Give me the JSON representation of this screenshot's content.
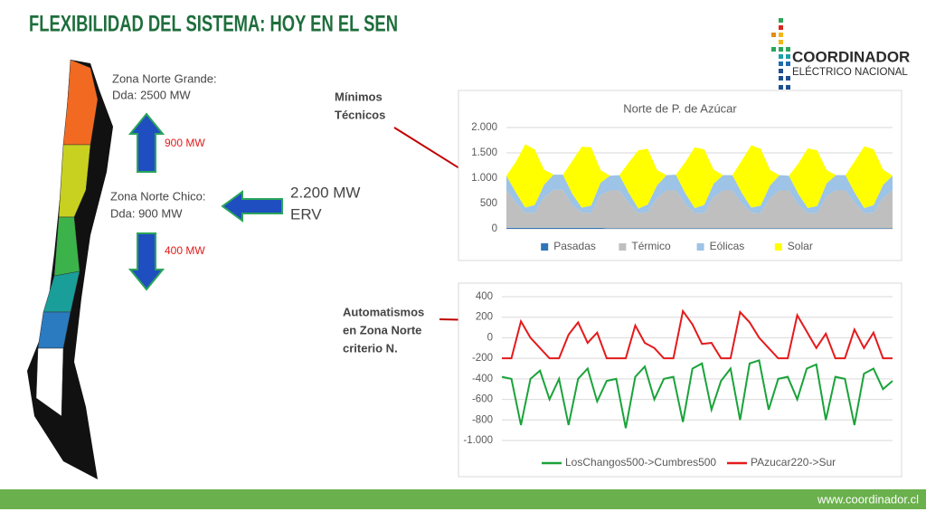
{
  "title": "FLEXIBILIDAD DEL SISTEMA: HOY EN EL SEN",
  "logo": {
    "name": "COORDINADOR",
    "subtitle": "ELÉCTRICO NACIONAL"
  },
  "zones": {
    "north_big": [
      "Zona Norte Grande:",
      "Dda: 2500 MW"
    ],
    "flow_up": "900 MW",
    "north_small": [
      "Zona Norte Chico:",
      "Dda: 900 MW"
    ],
    "flow_down": "400 MW",
    "erv": [
      "2.200 MW",
      "ERV"
    ]
  },
  "annotations": {
    "minimos": [
      "Mínimos",
      "Técnicos"
    ],
    "automatismos": [
      "Automatismos",
      "en Zona Norte",
      "criterio N."
    ]
  },
  "footer": "www.coordinador.cl",
  "chart_data": [
    {
      "type": "stacked_area",
      "title": "Norte de P. de Azúcar",
      "categories": [
        null,
        null,
        null,
        null,
        null,
        null,
        null,
        null,
        null,
        null,
        null,
        null,
        null,
        null,
        null,
        null,
        null,
        null,
        null,
        null,
        null,
        null,
        null,
        null,
        null,
        null,
        null,
        null,
        null,
        null,
        null,
        null,
        null,
        null,
        null,
        null,
        null,
        null,
        null,
        null,
        null,
        null
      ],
      "ylim": [
        0,
        2000
      ],
      "yticks": [
        0,
        500,
        {
          "value": 1000,
          "label": "1.000"
        },
        {
          "value": 1500,
          "label": "1.500"
        },
        {
          "value": 2000,
          "label": "2.000"
        }
      ],
      "grid": true,
      "series": [
        {
          "name": "Pasadas",
          "color": "#2e75b6",
          "values": [
            20,
            20,
            20,
            20,
            20,
            20,
            20,
            20,
            20,
            20,
            20,
            10,
            10,
            10,
            10,
            10,
            10,
            10,
            10,
            10,
            10,
            10,
            10,
            10,
            10,
            10,
            10,
            10,
            10,
            10,
            10,
            10,
            10,
            10,
            10,
            10,
            10,
            10,
            10,
            10,
            10,
            10
          ]
        },
        {
          "name": "Térmico",
          "color": "#bfbfbf",
          "values": [
            750,
            500,
            300,
            300,
            600,
            750,
            750,
            450,
            300,
            300,
            650,
            750,
            750,
            500,
            300,
            320,
            600,
            750,
            750,
            480,
            300,
            300,
            620,
            750,
            750,
            500,
            310,
            300,
            600,
            750,
            750,
            470,
            300,
            300,
            640,
            750,
            750,
            500,
            300,
            310,
            600,
            750
          ]
        },
        {
          "name": "Eólicas",
          "color": "#9dc3e6",
          "values": [
            280,
            200,
            100,
            150,
            250,
            300,
            300,
            220,
            100,
            140,
            240,
            290,
            300,
            200,
            90,
            150,
            250,
            300,
            310,
            210,
            100,
            160,
            260,
            300,
            300,
            200,
            100,
            150,
            250,
            300,
            290,
            210,
            100,
            140,
            250,
            300,
            300,
            200,
            100,
            150,
            260,
            290
          ]
        },
        {
          "name": "Solar",
          "color": "#ffff00",
          "values": [
            0,
            600,
            1250,
            1100,
            300,
            0,
            0,
            650,
            1200,
            1150,
            250,
            0,
            0,
            600,
            1150,
            1100,
            300,
            0,
            0,
            620,
            1200,
            1100,
            280,
            0,
            0,
            640,
            1230,
            1120,
            300,
            0,
            0,
            600,
            1180,
            1100,
            260,
            0,
            0,
            630,
            1220,
            1100,
            300,
            0
          ]
        }
      ],
      "legend": "bottom"
    },
    {
      "type": "line",
      "categories": [
        null,
        null,
        null,
        null,
        null,
        null,
        null,
        null,
        null,
        null,
        null,
        null,
        null,
        null,
        null,
        null,
        null,
        null,
        null,
        null,
        null,
        null,
        null,
        null,
        null,
        null,
        null,
        null,
        null,
        null,
        null,
        null,
        null,
        null,
        null,
        null,
        null,
        null,
        null,
        null,
        null,
        null
      ],
      "ylim": [
        -1000,
        400
      ],
      "yticks": [
        {
          "value": -1000,
          "label": "-1.000"
        },
        -800,
        -600,
        -400,
        -200,
        0,
        200,
        400
      ],
      "grid": true,
      "series": [
        {
          "name": "LosChangos500->Cumbres500",
          "color": "#1aa33a",
          "values": [
            -380,
            -400,
            -850,
            -400,
            -320,
            -600,
            -400,
            -850,
            -400,
            -300,
            -620,
            -420,
            -400,
            -880,
            -380,
            -280,
            -600,
            -400,
            -380,
            -820,
            -300,
            -250,
            -700,
            -420,
            -300,
            -800,
            -250,
            -220,
            -700,
            -400,
            -380,
            -600,
            -300,
            -260,
            -800,
            -380,
            -400,
            -850,
            -350,
            -300,
            -500,
            -420
          ]
        },
        {
          "name": "PAzucar220->Sur",
          "color": "#e41a1c",
          "values": [
            -200,
            -200,
            160,
            0,
            -100,
            -200,
            -200,
            30,
            150,
            -50,
            50,
            -200,
            -200,
            -200,
            120,
            -50,
            -100,
            -200,
            -200,
            260,
            130,
            -60,
            -50,
            -200,
            -200,
            250,
            150,
            0,
            -100,
            -200,
            -200,
            220,
            60,
            -100,
            40,
            -200,
            -200,
            80,
            -100,
            50,
            -200,
            -200
          ]
        }
      ],
      "legend": "bottom"
    }
  ]
}
